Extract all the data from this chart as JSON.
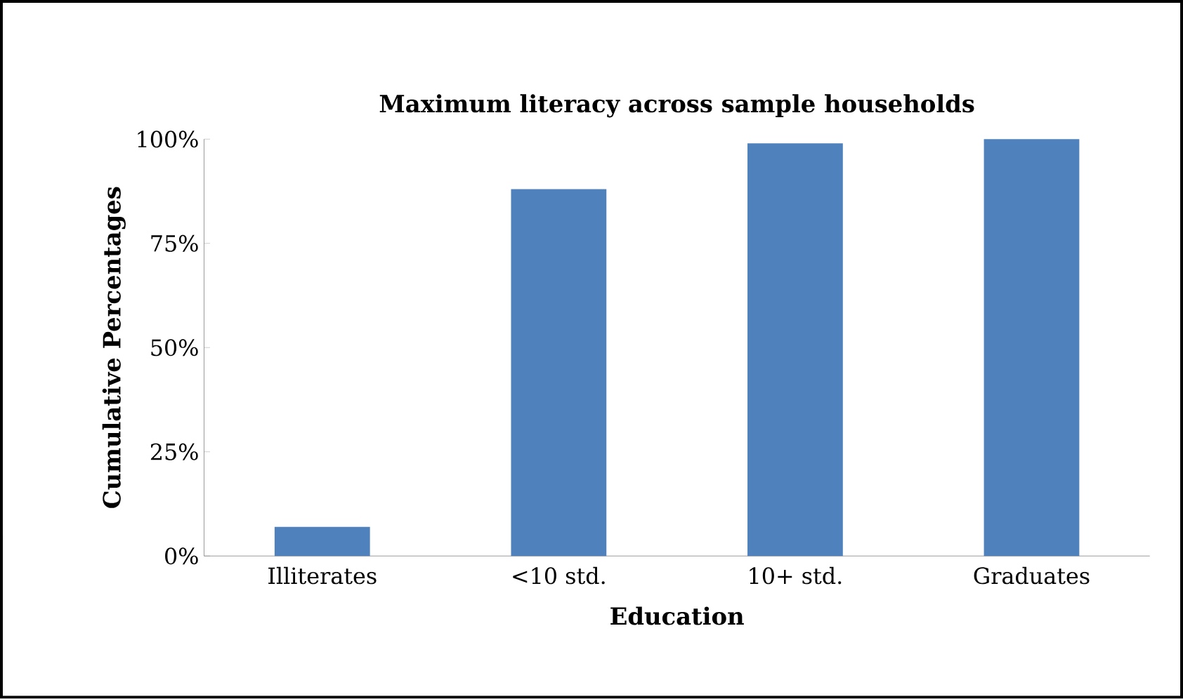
{
  "chart_data": {
    "type": "bar",
    "title": "Maximum literacy across sample households",
    "xlabel": "Education",
    "ylabel": "Cumulative Percentages",
    "categories": [
      "Illiterates",
      "<10 std.",
      "10+ std.",
      "Graduates"
    ],
    "values": [
      7,
      88,
      99,
      100
    ],
    "color": "#4f81bd",
    "ylim": [
      0,
      100
    ],
    "yticks": [
      {
        "value": 0,
        "label": "0%"
      },
      {
        "value": 25,
        "label": "25%"
      },
      {
        "value": 50,
        "label": "50%"
      },
      {
        "value": 75,
        "label": "75%"
      },
      {
        "value": 100,
        "label": "100%"
      }
    ],
    "grid": false
  }
}
